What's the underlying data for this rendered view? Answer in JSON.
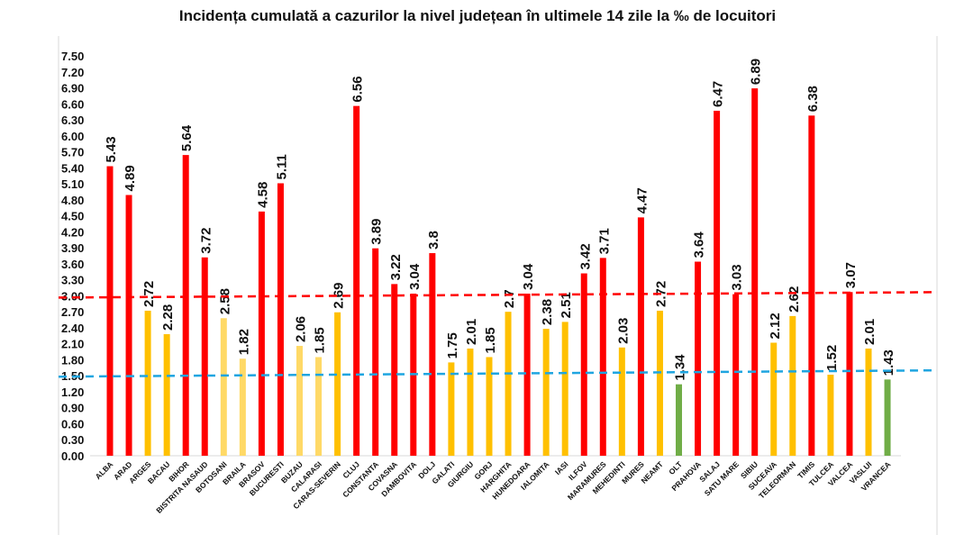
{
  "chart_data": {
    "type": "bar",
    "title": "Incidența cumulată a cazurilor la nivel județean în ultimele 14 zile la ‰ de locuitori",
    "xlabel": "",
    "ylabel": "",
    "ylim": [
      0,
      7.5
    ],
    "ytick_step": 0.3,
    "grid": false,
    "legend": "none",
    "colors": {
      "red": "#FF0000",
      "yellow": "#FFC000",
      "light_yellow": "#FFD966",
      "green": "#70AD47",
      "red_line": "#FF0000",
      "blue_line": "#1FA5E0"
    },
    "reference_lines": [
      {
        "color": "red_line",
        "value": 3.0
      },
      {
        "color": "blue_line",
        "value": 1.5
      }
    ],
    "categories": [
      "ALBA",
      "ARAD",
      "ARGES",
      "BACAU",
      "BIHOR",
      "BISTRITA NASAUD",
      "BOTOSANI",
      "BRAILA",
      "BRASOV",
      "BUCURESTI",
      "BUZAU",
      "CALARASI",
      "CARAS-SEVERIN",
      "CLUJ",
      "CONSTANTA",
      "COVASNA",
      "DAMBOVITA",
      "DOLJ",
      "GALATI",
      "GIURGIU",
      "GORJ",
      "HARGHITA",
      "HUNEDOARA",
      "IALOMITA",
      "IASI",
      "ILFOV",
      "MARAMURES",
      "MEHEDINTI",
      "MURES",
      "NEAMT",
      "OLT",
      "PRAHOVA",
      "SALAJ",
      "SATU MARE",
      "SIBIU",
      "SUCEAVA",
      "TELEORMAN",
      "TIMIS",
      "TULCEA",
      "VALCEA",
      "VASLUI",
      "VRANCEA"
    ],
    "values": [
      5.43,
      4.89,
      2.72,
      2.28,
      5.64,
      3.72,
      2.58,
      1.82,
      4.58,
      5.11,
      2.06,
      1.85,
      2.69,
      6.56,
      3.89,
      3.22,
      3.04,
      3.8,
      1.75,
      2.01,
      1.85,
      2.7,
      3.04,
      2.38,
      2.51,
      3.42,
      3.71,
      2.03,
      4.47,
      2.72,
      1.34,
      3.64,
      6.47,
      3.03,
      6.89,
      2.12,
      2.62,
      6.38,
      1.52,
      3.07,
      2.01,
      1.43
    ],
    "labels": [
      "5.43",
      "4.89",
      "2.72",
      "2.28",
      "5.64",
      "3.72",
      "2.58",
      "1.82",
      "4.58",
      "5.11",
      "2.06",
      "1.85",
      "2.69",
      "6.56",
      "3.89",
      "3.22",
      "3.04",
      "3.8",
      "1.75",
      "2.01",
      "1.85",
      "2.7",
      "3.04",
      "2.38",
      "2.51",
      "3.42",
      "3.71",
      "2.03",
      "4.47",
      "2.72",
      "1.34",
      "3.64",
      "6.47",
      "3.03",
      "6.89",
      "2.12",
      "2.62",
      "6.38",
      "1.52",
      "3.07",
      "2.01",
      "1.43"
    ],
    "bar_colors": [
      "red",
      "red",
      "yellow",
      "yellow",
      "red",
      "red",
      "light_yellow",
      "light_yellow",
      "red",
      "red",
      "light_yellow",
      "light_yellow",
      "yellow",
      "red",
      "red",
      "red",
      "red",
      "red",
      "yellow",
      "yellow",
      "yellow",
      "yellow",
      "red",
      "yellow",
      "yellow",
      "red",
      "red",
      "yellow",
      "red",
      "yellow",
      "green",
      "red",
      "red",
      "red",
      "red",
      "yellow",
      "yellow",
      "red",
      "yellow",
      "red",
      "yellow",
      "green"
    ]
  }
}
